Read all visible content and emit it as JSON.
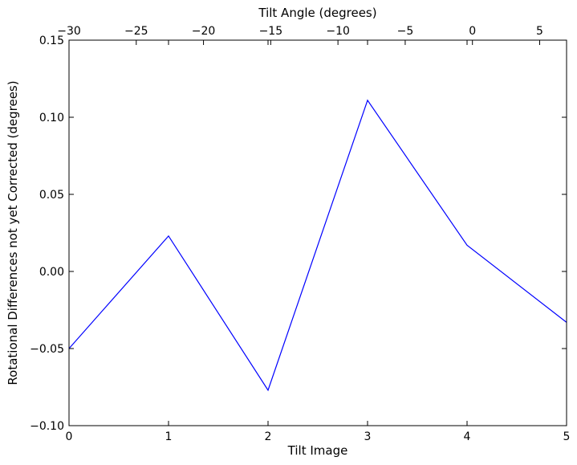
{
  "chart_data": {
    "type": "line",
    "xlabel": "Tilt Image",
    "ylabel": "Rotational Differences not yet Corrected (degrees)",
    "xlim": [
      0,
      5
    ],
    "ylim": [
      -0.1,
      0.15
    ],
    "x_ticks": [
      "0",
      "1",
      "2",
      "3",
      "4",
      "5"
    ],
    "y_ticks": [
      "−0.10",
      "−0.05",
      "0.00",
      "0.05",
      "0.10",
      "0.15"
    ],
    "top_axis": {
      "label": "Tilt Angle (degrees)",
      "xlim": [
        -30,
        7
      ],
      "ticks": [
        "−30",
        "−25",
        "−20",
        "−15",
        "−10",
        "−5",
        "0",
        "5"
      ]
    },
    "series": [
      {
        "color": "#0000ff",
        "x": [
          0,
          1,
          2,
          3,
          4,
          5
        ],
        "y": [
          -0.05,
          0.023,
          -0.077,
          0.111,
          0.017,
          -0.033
        ]
      }
    ]
  }
}
